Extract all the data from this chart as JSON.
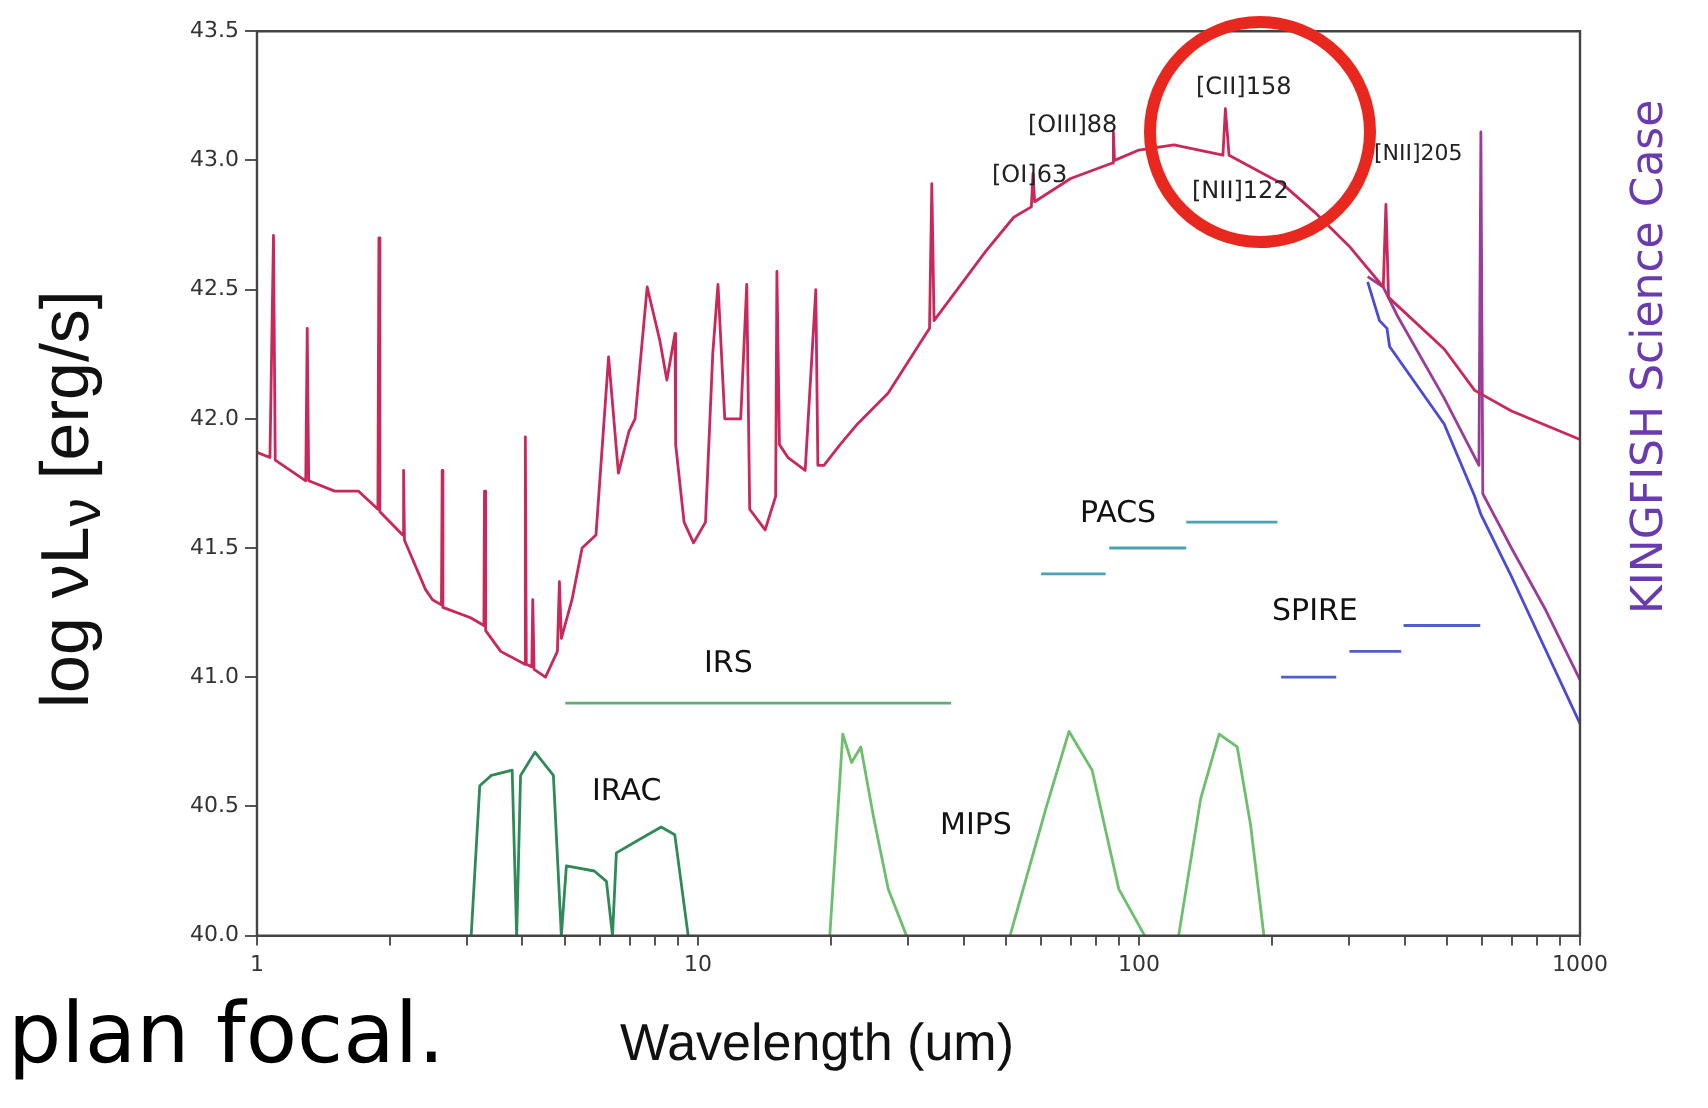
{
  "chart_data": {
    "type": "line",
    "xlabel": "Wavelength (um)",
    "ylabel": "log νL$_{ν}$ [erg/s]",
    "log": "x",
    "grid": false,
    "legend": false,
    "marker": "none",
    "line_style": "solid",
    "xlim": [
      1,
      1000
    ],
    "xticks": [
      1,
      {
        "value": 2,
        "label": null
      },
      {
        "value": 3,
        "label": null
      },
      {
        "value": 4,
        "label": null
      },
      {
        "value": 5,
        "label": null
      },
      {
        "value": 6,
        "label": null
      },
      {
        "value": 7,
        "label": null
      },
      {
        "value": 8,
        "label": null
      },
      {
        "value": 9,
        "label": null
      },
      10,
      {
        "value": 20,
        "label": null
      },
      {
        "value": 30,
        "label": null
      },
      {
        "value": 40,
        "label": null
      },
      {
        "value": 50,
        "label": null
      },
      {
        "value": 60,
        "label": null
      },
      {
        "value": 70,
        "label": null
      },
      {
        "value": 80,
        "label": null
      },
      {
        "value": 90,
        "label": null
      },
      100,
      {
        "value": 200,
        "label": null
      },
      {
        "value": 300,
        "label": null
      },
      {
        "value": 400,
        "label": null
      },
      {
        "value": 500,
        "label": null
      },
      {
        "value": 600,
        "label": null
      },
      {
        "value": 700,
        "label": null
      },
      {
        "value": 800,
        "label": null
      },
      {
        "value": 900,
        "label": null
      },
      1000
    ],
    "ylim": [
      40,
      43.5
    ],
    "yticks": [
      {
        "value": 40,
        "label": "40.0"
      },
      {
        "value": 40.5,
        "label": "40.5"
      },
      {
        "value": 41,
        "label": "41.0"
      },
      {
        "value": 41.5,
        "label": "41.5"
      },
      {
        "value": 42,
        "label": "42.0"
      },
      {
        "value": 42.5,
        "label": "42.5"
      },
      {
        "value": 43,
        "label": "43.0"
      },
      {
        "value": 43.5,
        "label": "43.5"
      }
    ],
    "series": [
      {
        "color": "#c8285a",
        "x": [
          1,
          1.07,
          1.09,
          1.1,
          1.29,
          1.3,
          1.31,
          1.5,
          1.7,
          1.88,
          1.89,
          1.9,
          2.14,
          2.15,
          2.16,
          2.41,
          2.5,
          2.62,
          2.63,
          2.64,
          3.05,
          3.27,
          3.28,
          3.3,
          3.57,
          4.05,
          4.06,
          4.08,
          4.2,
          4.22,
          4.25,
          4.51,
          4.8,
          4.85,
          4.9,
          5.18,
          5.46,
          5.87,
          6.27,
          6.6,
          6.97,
          7.2,
          7.67,
          8.2,
          8.5,
          8.87,
          8.9,
          9.3,
          9.77,
          10.4,
          10.8,
          11.1,
          11.5,
          12.5,
          12.9,
          13.1,
          14.2,
          15,
          15.1,
          15.3,
          16,
          17.5,
          18.5,
          18.7,
          19.3,
          21,
          23,
          27,
          33.5,
          33.9,
          34.3,
          45,
          52,
          57,
          57.5,
          58,
          70,
          87,
          87.5,
          88,
          100,
          120,
          155,
          157,
          160,
          211,
          250,
          299,
          358,
          363,
          368,
          492,
          577,
          699,
          1000
        ],
        "values": [
          41.87,
          41.85,
          42.71,
          41.84,
          41.76,
          42.35,
          41.76,
          41.72,
          41.72,
          41.65,
          42.7,
          41.64,
          41.55,
          41.8,
          41.53,
          41.34,
          41.3,
          41.28,
          41.8,
          41.27,
          41.23,
          41.2,
          41.72,
          41.18,
          41.1,
          41.05,
          41.93,
          41.05,
          41.04,
          41.3,
          41.03,
          41.0,
          41.1,
          41.37,
          41.15,
          41.3,
          41.5,
          41.55,
          42.24,
          41.79,
          41.95,
          42.0,
          42.51,
          42.3,
          42.15,
          42.33,
          41.9,
          41.6,
          41.52,
          41.6,
          42.25,
          42.52,
          42.0,
          42.0,
          42.52,
          41.65,
          41.57,
          41.7,
          42.57,
          41.9,
          41.85,
          41.8,
          42.5,
          41.82,
          41.82,
          41.9,
          41.98,
          42.1,
          42.35,
          42.91,
          42.38,
          42.65,
          42.78,
          42.82,
          42.95,
          42.84,
          42.93,
          42.99,
          43.11,
          43.0,
          43.04,
          43.06,
          43.02,
          43.2,
          43.02,
          42.91,
          42.8,
          42.67,
          42.51,
          42.83,
          42.47,
          42.27,
          42.11,
          42.03,
          41.92
        ]
      },
      {
        "color": "#9a3c9a",
        "x": [
          330,
          358,
          385,
          492,
          590,
          596,
          602,
          699,
          836,
          1000
        ],
        "values": [
          42.55,
          42.51,
          42.4,
          42.08,
          41.82,
          43.11,
          41.71,
          41.5,
          41.26,
          40.99
        ]
      },
      {
        "color": "#4a4ad8",
        "x": [
          330,
          351,
          365,
          370,
          492,
          577,
          596,
          699,
          1000
        ],
        "values": [
          42.53,
          42.38,
          42.35,
          42.28,
          41.98,
          41.7,
          41.63,
          41.39,
          40.82
        ]
      },
      {
        "color": "#2e8b57",
        "x": [
          3.06,
          3.2,
          3.4,
          3.79,
          3.88,
          3.96,
          4.27,
          4.7,
          4.9,
          5.03,
          5.82,
          6.2,
          6.4,
          6.53,
          7.33,
          8.25,
          8.86,
          9.5
        ],
        "values": [
          40.0,
          40.58,
          40.62,
          40.64,
          40.0,
          40.62,
          40.71,
          40.62,
          40.0,
          40.27,
          40.25,
          40.21,
          40.0,
          40.32,
          40.37,
          40.42,
          40.39,
          40.0
        ]
      },
      {
        "color": "#5fae78",
        "x": [
          5.0,
          37.5
        ],
        "values": [
          40.9,
          40.9
        ]
      },
      {
        "color": "#6cbf6c",
        "x": [
          19.9,
          21.3,
          22.3,
          23.4,
          25,
          27,
          29.7
        ],
        "values": [
          40.0,
          40.78,
          40.67,
          40.73,
          40.46,
          40.18,
          40.0
        ]
      },
      {
        "color": "#6cbf6c",
        "x": [
          51,
          61.7,
          69.4,
          78.3,
          90,
          103
        ],
        "values": [
          40.0,
          40.5,
          40.79,
          40.64,
          40.18,
          40.0
        ]
      },
      {
        "color": "#6cbf6c",
        "x": [
          123,
          138,
          152,
          167,
          179,
          192
        ],
        "values": [
          40.0,
          40.53,
          40.78,
          40.73,
          40.43,
          40.0
        ]
      },
      {
        "color": "#4aa3b0",
        "x": [
          60,
          84
        ],
        "values": [
          41.4,
          41.4
        ]
      },
      {
        "color": "#4aa3b0",
        "x": [
          85.6,
          128
        ],
        "values": [
          41.5,
          41.5
        ]
      },
      {
        "color": "#4aa3b0",
        "x": [
          128,
          206
        ],
        "values": [
          41.6,
          41.6
        ]
      },
      {
        "color": "#5060c8",
        "x": [
          210,
          280
        ],
        "values": [
          41.0,
          41.0
        ]
      },
      {
        "color": "#5060c8",
        "x": [
          300,
          393
        ],
        "values": [
          41.1,
          41.1
        ]
      },
      {
        "color": "#5060c8",
        "x": [
          398,
          594
        ],
        "values": [
          41.2,
          41.2
        ]
      }
    ],
    "annotations": [
      "KINGFISH Science Case",
      "plan focal.",
      "[OI]63",
      "[OIII]88",
      "[NII]122",
      "[CII]158",
      "[NII]205",
      "IRS",
      "IRAC",
      "MIPS",
      "PACS",
      "SPIRE"
    ]
  }
}
